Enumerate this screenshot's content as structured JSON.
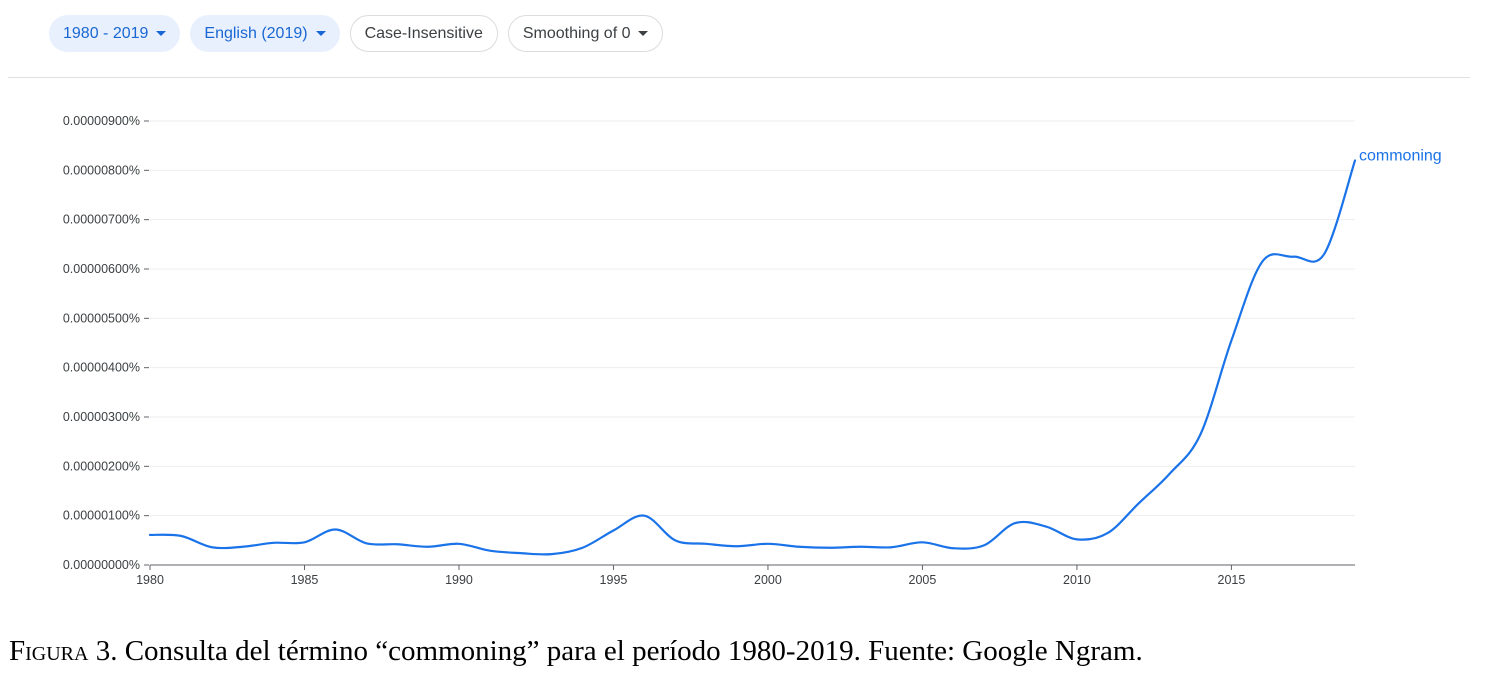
{
  "toolbar": {
    "year_range": "1980 - 2019",
    "corpus": "English (2019)",
    "case": "Case-Insensitive",
    "smoothing": "Smoothing of 0"
  },
  "caption": {
    "label": "Figura",
    "number": "3.",
    "text": "Consulta del término “commoning” para el período 1980-2019. Fuente: Google Ngram."
  },
  "colors": {
    "line": "#1a73e8",
    "chip_bg": "#e8f0fe",
    "chip_text": "#1967d2",
    "grid": "#eeeeee"
  },
  "chart_data": {
    "type": "line",
    "title": "",
    "xlabel": "",
    "ylabel": "",
    "xlim": [
      1980,
      2019
    ],
    "ylim": [
      0,
      9e-06
    ],
    "grid": true,
    "x_ticks": [
      1980,
      1985,
      1990,
      1995,
      2000,
      2005,
      2010,
      2015
    ],
    "y_ticks": [
      {
        "value": 0,
        "label": "0.00000000%"
      },
      {
        "value": 1e-06,
        "label": "0.00000100%"
      },
      {
        "value": 2e-06,
        "label": "0.00000200%"
      },
      {
        "value": 3e-06,
        "label": "0.00000300%"
      },
      {
        "value": 4e-06,
        "label": "0.00000400%"
      },
      {
        "value": 5e-06,
        "label": "0.00000500%"
      },
      {
        "value": 6e-06,
        "label": "0.00000600%"
      },
      {
        "value": 7e-06,
        "label": "0.00000700%"
      },
      {
        "value": 8e-06,
        "label": "0.00000800%"
      },
      {
        "value": 9e-06,
        "label": "0.00000900%"
      }
    ],
    "series": [
      {
        "name": "commoning",
        "x": [
          1980,
          1981,
          1982,
          1983,
          1984,
          1985,
          1986,
          1987,
          1988,
          1989,
          1990,
          1991,
          1992,
          1993,
          1994,
          1995,
          1996,
          1997,
          1998,
          1999,
          2000,
          2001,
          2002,
          2003,
          2004,
          2005,
          2006,
          2007,
          2008,
          2009,
          2010,
          2011,
          2012,
          2013,
          2014,
          2015,
          2016,
          2017,
          2018,
          2019
        ],
        "values": [
          6.1e-07,
          5.9e-07,
          3.6e-07,
          3.7e-07,
          4.5e-07,
          4.6e-07,
          7.2e-07,
          4.4e-07,
          4.2e-07,
          3.7e-07,
          4.3e-07,
          2.9e-07,
          2.4e-07,
          2.2e-07,
          3.5e-07,
          7e-07,
          1e-06,
          5e-07,
          4.3e-07,
          3.8e-07,
          4.3e-07,
          3.7e-07,
          3.5e-07,
          3.7e-07,
          3.6e-07,
          4.6e-07,
          3.4e-07,
          4e-07,
          8.5e-07,
          7.8e-07,
          5.2e-07,
          6.5e-07,
          1.25e-06,
          1.85e-06,
          2.65e-06,
          4.55e-06,
          6.15e-06,
          6.25e-06,
          6.3e-06,
          8.2e-06
        ]
      }
    ]
  }
}
